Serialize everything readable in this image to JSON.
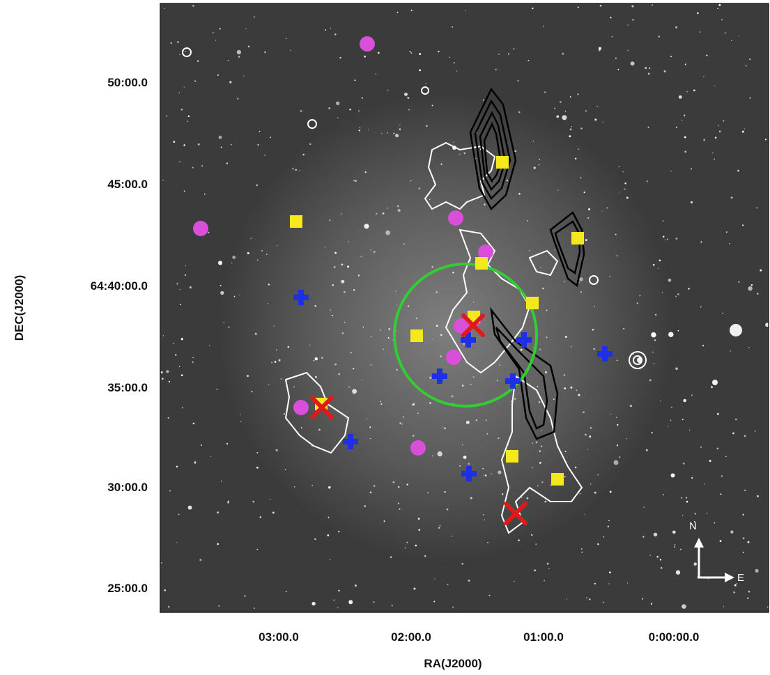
{
  "axes": {
    "xlabel": "RA(J2000)",
    "ylabel": "DEC(J2000)",
    "x_ticks": [
      "03:00.0",
      "02:00.0",
      "01:00.0",
      "0:00:00.0"
    ],
    "y_ticks": [
      "50:00.0",
      "45:00.0",
      "64:40:00.0",
      "35:00.0",
      "30:00.0",
      "25:00.0"
    ]
  },
  "compass": {
    "north": "N",
    "east": "E"
  },
  "colors": {
    "magenta": "#d94fd9",
    "yellow": "#f5e81c",
    "blue": "#1f2fe6",
    "red": "#e01a1a",
    "green": "#33cc33"
  },
  "markers": {
    "magenta_circles": 9,
    "yellow_squares": 10,
    "blue_crosses": 8,
    "red_crosses": 3
  }
}
